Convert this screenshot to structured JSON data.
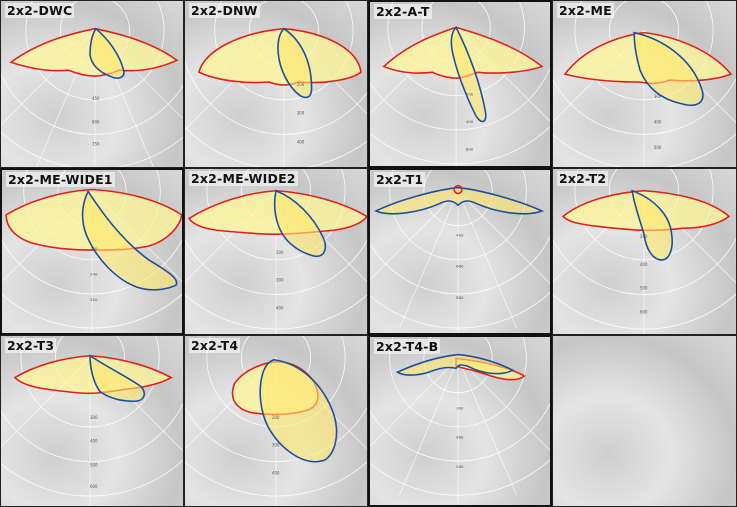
{
  "panels": [
    {
      "label": "2x2-DWC",
      "ticks": [
        "450",
        "600",
        "750"
      ]
    },
    {
      "label": "2x2-DNW",
      "ticks": [
        "200",
        "300",
        "400"
      ]
    },
    {
      "label": "2x2-A-T",
      "ticks": [
        "200",
        "400",
        "600"
      ]
    },
    {
      "label": "2x2-ME",
      "ticks": [
        "300",
        "400",
        "500"
      ]
    },
    {
      "label": "2x2-ME-WIDE1",
      "ticks": [
        "160",
        "240",
        "320"
      ]
    },
    {
      "label": "2x2-ME-WIDE2",
      "ticks": [
        "200",
        "300",
        "400"
      ]
    },
    {
      "label": "2x2-T1",
      "ticks": [
        "400",
        "600",
        "800"
      ]
    },
    {
      "label": "2x2-T2",
      "ticks": [
        "200",
        "400",
        "500",
        "600"
      ]
    },
    {
      "label": "2x2-T3",
      "ticks": [
        "300",
        "400",
        "500",
        "600"
      ]
    },
    {
      "label": "2x2-T4",
      "ticks": [
        "200",
        "300",
        "400"
      ]
    },
    {
      "label": "2x2-T4-B",
      "ticks": [
        "300",
        "400",
        "500"
      ]
    },
    {
      "label": "",
      "ticks": []
    }
  ],
  "colors": {
    "lobe_red": "#e02020",
    "lobe_blue": "#1a4fa0",
    "fill": "#fff59a"
  }
}
